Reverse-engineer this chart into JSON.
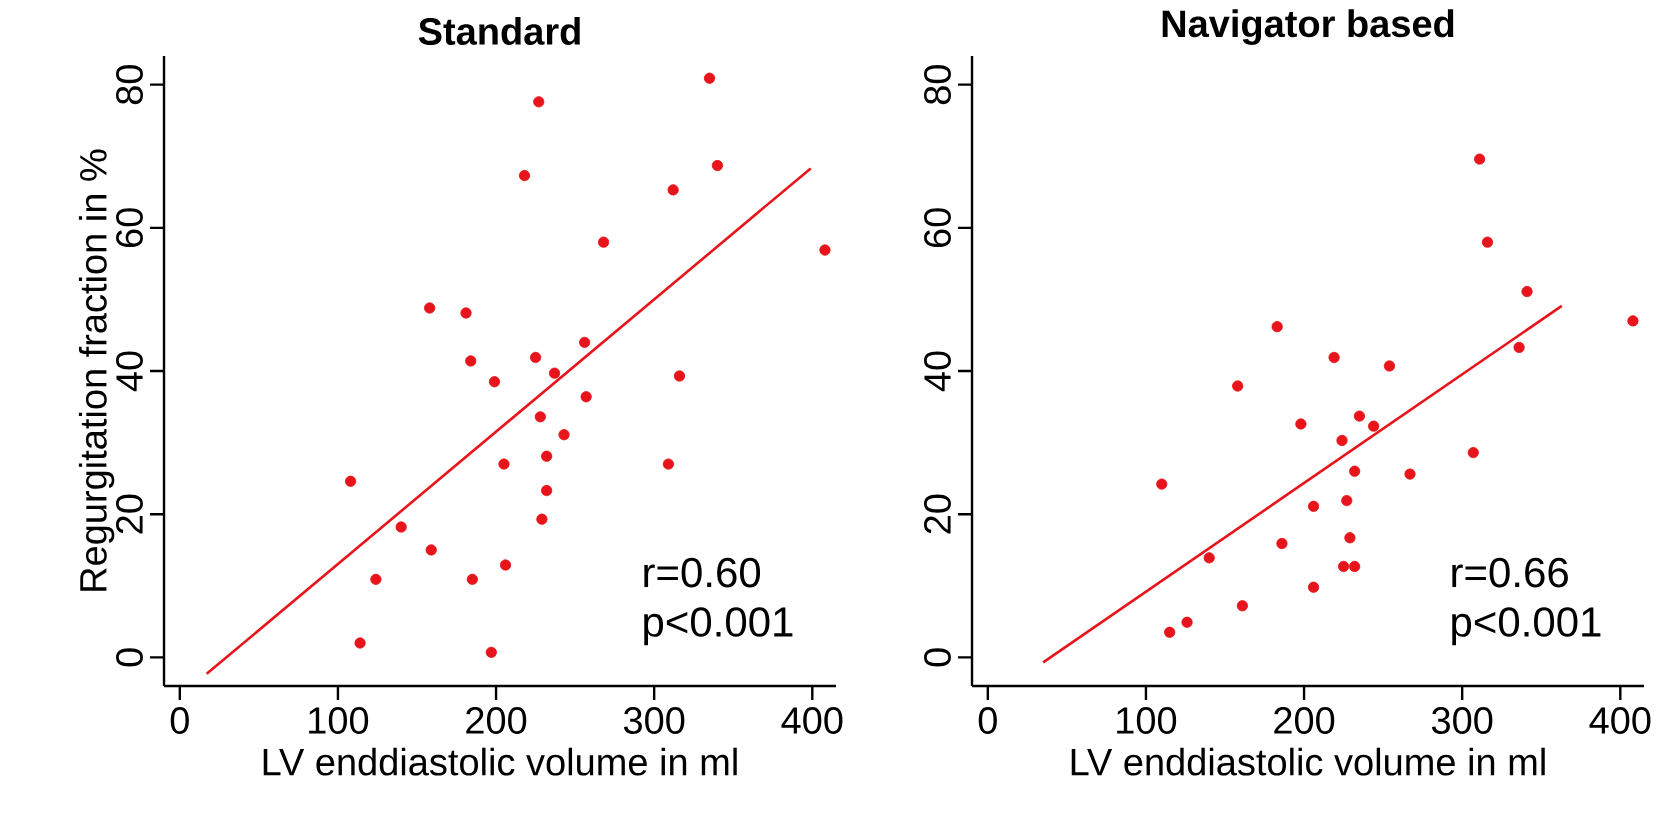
{
  "chart_data": [
    {
      "type": "scatter",
      "title": "Standard",
      "xlabel": "LV enddiastolic volume in ml",
      "ylabel": "Regurgitation fraction in %",
      "xlim": [
        -10,
        415
      ],
      "ylim": [
        -4,
        84
      ],
      "xticks": [
        0,
        100,
        200,
        300,
        400
      ],
      "yticks": [
        0,
        20,
        40,
        60,
        80
      ],
      "annotations": [
        "r=0.60",
        "p<0.001"
      ],
      "series": [
        {
          "color": "#e8141b",
          "marker": "circle",
          "x": [
            108,
            114,
            124,
            140,
            158,
            159,
            181,
            184,
            185,
            199,
            197,
            205,
            206,
            218,
            225,
            227,
            228,
            232,
            232,
            229,
            237,
            243,
            256,
            257,
            268,
            309,
            312,
            316,
            335,
            340,
            408
          ],
          "values": [
            24.6,
            2.0,
            10.9,
            18.2,
            48.8,
            15.0,
            48.1,
            41.4,
            10.9,
            38.5,
            0.7,
            27.0,
            12.9,
            67.3,
            41.9,
            77.6,
            33.6,
            28.1,
            23.3,
            19.3,
            39.7,
            31.1,
            44.0,
            36.4,
            58.0,
            27.0,
            65.3,
            39.3,
            80.9,
            68.7,
            56.9
          ]
        },
        {
          "type": "line",
          "marker": "none",
          "color": "#e8141b",
          "x": [
            17,
            399
          ],
          "values": [
            -2.3,
            68.3
          ]
        }
      ]
    },
    {
      "type": "scatter",
      "title": "Navigator based",
      "xlabel": "LV enddiastolic volume in ml",
      "xlim": [
        -10,
        415
      ],
      "ylim": [
        -4,
        84
      ],
      "xticks": [
        0,
        100,
        200,
        300,
        400
      ],
      "yticks": [
        0,
        20,
        40,
        60,
        80
      ],
      "annotations": [
        "r=0.66",
        "p<0.001"
      ],
      "series": [
        {
          "color": "#e8141b",
          "marker": "circle",
          "x": [
            110,
            115,
            126,
            140,
            158,
            161,
            183,
            186,
            198,
            206,
            206,
            219,
            224,
            227,
            229,
            225,
            232,
            232,
            235,
            244,
            254,
            267,
            307,
            311,
            316,
            336,
            341,
            408
          ],
          "values": [
            24.2,
            3.5,
            4.9,
            13.9,
            37.9,
            7.2,
            46.2,
            15.9,
            32.6,
            21.1,
            9.8,
            41.9,
            30.3,
            21.9,
            16.7,
            12.7,
            12.7,
            26.0,
            33.7,
            32.3,
            40.7,
            25.6,
            28.6,
            69.6,
            58.0,
            43.3,
            51.1,
            47.0
          ]
        },
        {
          "type": "line",
          "marker": "none",
          "color": "#e8141b",
          "x": [
            35,
            363
          ],
          "values": [
            -0.7,
            49.1
          ]
        }
      ]
    }
  ]
}
